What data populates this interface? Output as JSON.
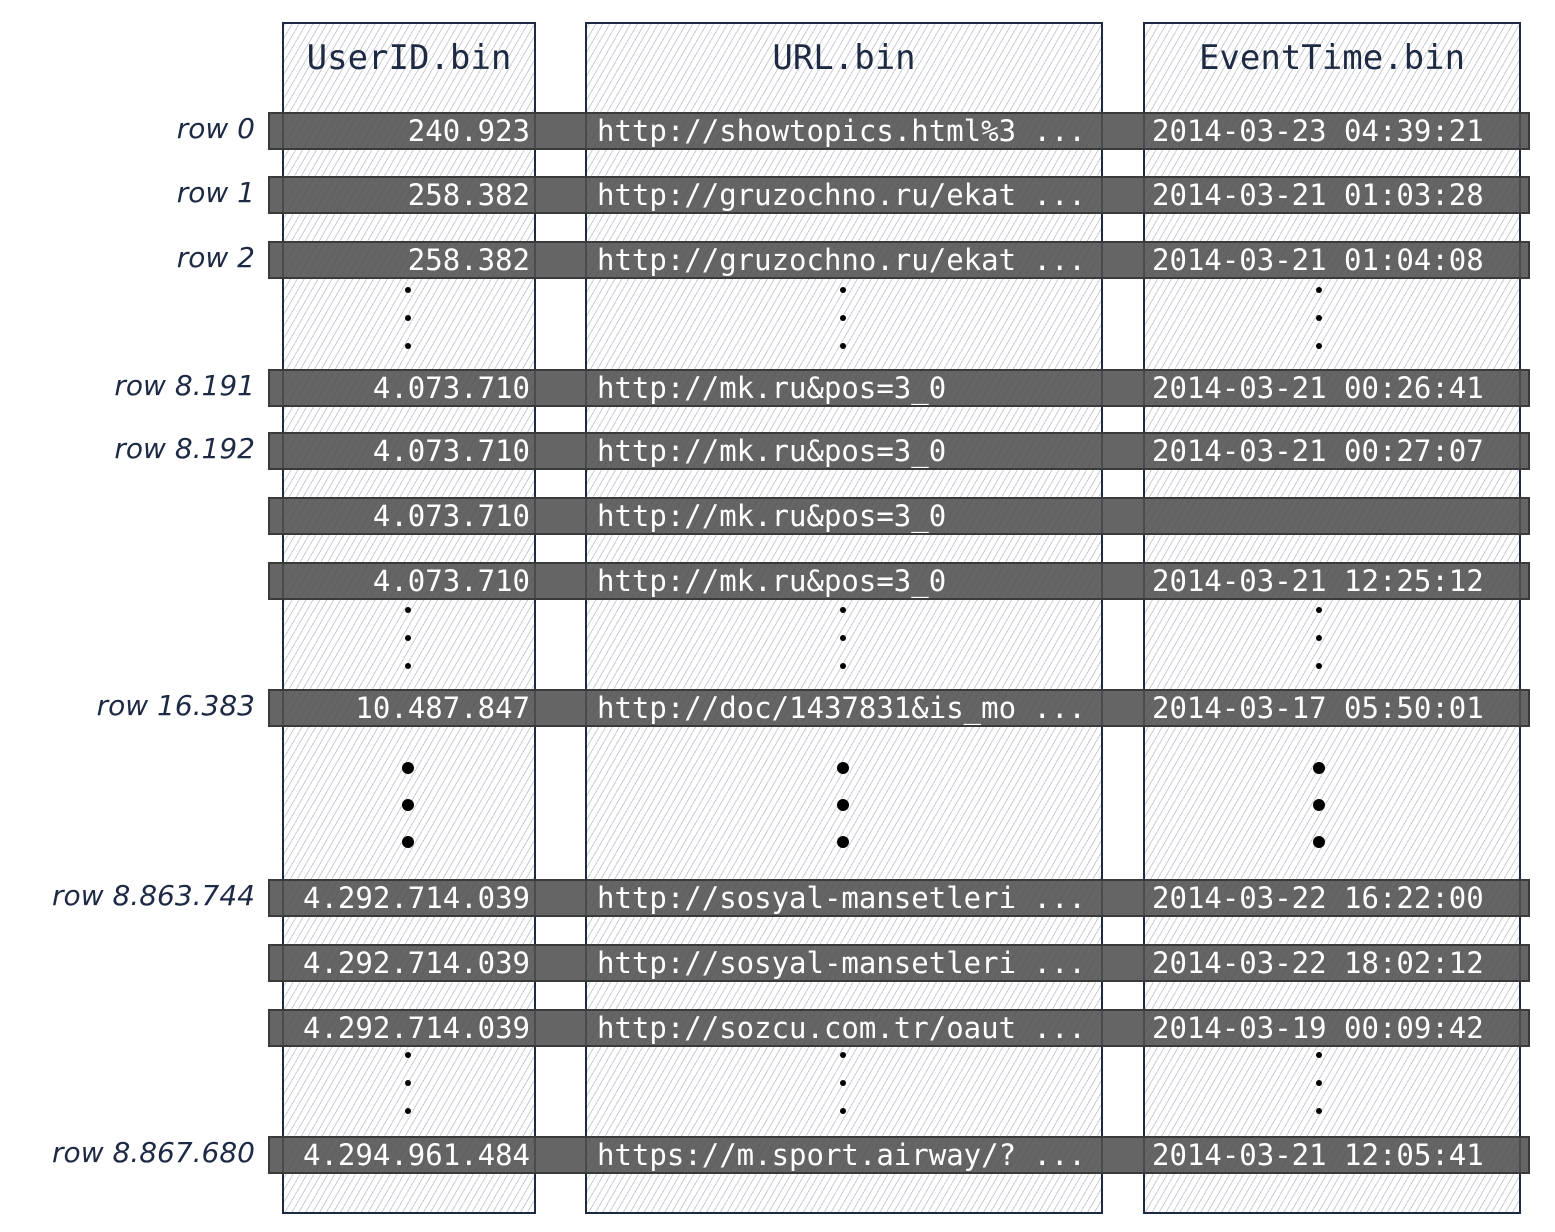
{
  "columns": [
    "UserID.bin",
    "URL.bin",
    "EventTime.bin"
  ],
  "rows": [
    {
      "label": "row 0",
      "userid": "240.923",
      "url": "http://showtopics.html%3 ...",
      "eventtime": "2014-03-23 04:39:21"
    },
    {
      "label": "row 1",
      "userid": "258.382",
      "url": "http://gruzochno.ru/ekat ...",
      "eventtime": "2014-03-21 01:03:28"
    },
    {
      "label": "row 2",
      "userid": "258.382",
      "url": "http://gruzochno.ru/ekat ...",
      "eventtime": "2014-03-21 01:04:08"
    },
    {
      "ellipsis": true
    },
    {
      "label": "row 8.191",
      "userid": "4.073.710",
      "url": "http://mk.ru&pos=3_0",
      "eventtime": "2014-03-21 00:26:41"
    },
    {
      "label": "row 8.192",
      "userid": "4.073.710",
      "url": "http://mk.ru&pos=3_0",
      "eventtime": "2014-03-21 00:27:07"
    },
    {
      "label": "",
      "userid": "4.073.710",
      "url": "http://mk.ru&pos=3_0",
      "eventtime": ""
    },
    {
      "label": "",
      "userid": "4.073.710",
      "url": "http://mk.ru&pos=3_0",
      "eventtime": "2014-03-21 12:25:12"
    },
    {
      "ellipsis": true
    },
    {
      "label": "row 16.383",
      "userid": "10.487.847",
      "url": "http://doc/1437831&is_mo ...",
      "eventtime": "2014-03-17 05:50:01"
    },
    {
      "ellipsis": true,
      "big": true
    },
    {
      "label": "row 8.863.744",
      "userid": "4.292.714.039",
      "url": "http://sosyal-mansetleri ...",
      "eventtime": "2014-03-22 16:22:00"
    },
    {
      "label": "",
      "userid": "4.292.714.039",
      "url": "http://sosyal-mansetleri ...",
      "eventtime": "2014-03-22 18:02:12"
    },
    {
      "label": "",
      "userid": "4.292.714.039",
      "url": "http://sozcu.com.tr/oaut ...",
      "eventtime": "2014-03-19 00:09:42"
    },
    {
      "ellipsis": true
    },
    {
      "label": "row 8.867.680",
      "userid": "4.294.961.484",
      "url": "https://m.sport.airway/? ...",
      "eventtime": "2014-03-21 12:05:41"
    }
  ]
}
